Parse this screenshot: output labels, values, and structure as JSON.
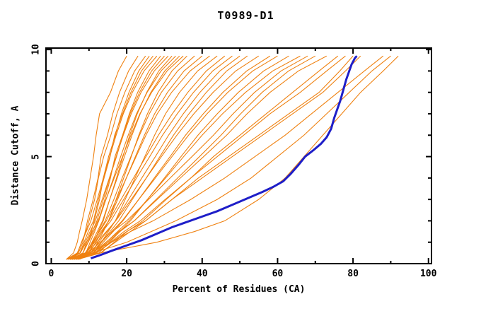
{
  "title": "T0989-D1",
  "chart_data": {
    "type": "line",
    "title": "T0989-D1",
    "xlabel": "Percent of Residues (CA)",
    "ylabel": "Distance Cutoff, A",
    "xlim": [
      -1.4,
      100.8
    ],
    "ylim": [
      0,
      10.07
    ],
    "grid": false,
    "legend": "none",
    "x_ticks_major": [
      0,
      20,
      40,
      60,
      80,
      100
    ],
    "x_ticks_minor": [
      10,
      30,
      50,
      70,
      90
    ],
    "x_tick_labels": [
      "0",
      "20",
      "40",
      "60",
      "80",
      "100"
    ],
    "y_ticks_major": [
      0,
      5,
      10
    ],
    "y_ticks_minor": [
      1,
      2,
      3,
      4,
      6,
      7,
      8,
      9
    ],
    "y_tick_labels": [
      "0",
      "5",
      "10"
    ],
    "colors": {
      "model_lines": "#EF8110",
      "highlight_line": "#1E1EC8",
      "axis": "#000000",
      "background": "#FFFFFF"
    },
    "series_note": "orange: per-model cumulative CA accuracy curves; blue: highlighted model curve",
    "y_levels": [
      0.2,
      0.5,
      1,
      1.5,
      2,
      3,
      4,
      5,
      6,
      7,
      8,
      9,
      9.7
    ],
    "orange_series_x": [
      [
        4,
        5.9,
        6.9,
        7.5,
        8.2,
        9.4,
        10.3,
        11.2,
        11.9,
        12.8,
        15.7,
        17.8,
        20
      ],
      [
        5,
        7.2,
        8.4,
        9,
        9.6,
        11.1,
        12.4,
        13.2,
        14.9,
        16.3,
        18.1,
        20.5,
        23
      ],
      [
        4.5,
        7,
        8,
        9.2,
        10,
        11.5,
        12.5,
        13.9,
        15.8,
        17.4,
        19.5,
        22.1,
        25
      ],
      [
        6,
        8.4,
        9.4,
        10.6,
        11.4,
        12.8,
        13.8,
        15.2,
        17,
        18.6,
        20.6,
        23.2,
        26
      ],
      [
        5,
        7.6,
        8.7,
        9.8,
        11.2,
        12.5,
        14,
        15.6,
        16.8,
        18.9,
        21.1,
        23.9,
        27
      ],
      [
        4,
        6.9,
        8.1,
        9.3,
        10.5,
        12.2,
        13.8,
        15.5,
        17.2,
        19.1,
        21.5,
        24.6,
        28
      ],
      [
        6.5,
        9.2,
        10.3,
        11.5,
        12.6,
        14.2,
        15.7,
        16.9,
        18.9,
        20.7,
        22.9,
        25.9,
        29
      ],
      [
        5.5,
        8.4,
        9.7,
        10.9,
        12.1,
        13.8,
        15.5,
        17.3,
        19,
        20.9,
        23.4,
        26.6,
        30
      ],
      [
        4.5,
        7.7,
        9,
        10.3,
        11.7,
        13.5,
        15.4,
        17.2,
        19.1,
        21.2,
        23.8,
        27.3,
        31
      ],
      [
        7,
        10,
        11.3,
        12.5,
        13.8,
        15.5,
        17.3,
        19,
        20.8,
        22.8,
        25.3,
        28.5,
        32
      ],
      [
        5,
        8.4,
        9.8,
        11.2,
        12.6,
        14.5,
        16.5,
        18.4,
        20.4,
        22.6,
        25.4,
        29.1,
        33
      ],
      [
        6,
        9.4,
        10.8,
        12.2,
        13.6,
        15.5,
        17.5,
        19.4,
        21.4,
        23.6,
        26.4,
        30.1,
        34
      ],
      [
        4,
        7.7,
        9.3,
        10.8,
        12.4,
        14.5,
        16.7,
        18.9,
        21.1,
        23.5,
        26.6,
        30.7,
        35
      ],
      [
        7.5,
        10.9,
        12.3,
        13.8,
        15.2,
        17.2,
        19.2,
        21.2,
        23.2,
        25.5,
        28.3,
        32,
        36
      ],
      [
        5.5,
        9.4,
        11,
        12.7,
        14.3,
        16.6,
        18.8,
        21.1,
        23.4,
        26,
        29.2,
        33.5,
        38
      ],
      [
        6,
        10.1,
        11.8,
        13.5,
        15.2,
        17.6,
        19.9,
        22.3,
        24.7,
        27.4,
        30.8,
        35.2,
        40
      ],
      [
        4.5,
        9,
        10.9,
        12.8,
        14.6,
        17.3,
        19.9,
        22.5,
        25.1,
        28.1,
        31.9,
        36.8,
        42
      ],
      [
        7,
        11.4,
        13.3,
        15.1,
        17,
        19.6,
        22.2,
        24.8,
        27.4,
        30.3,
        34,
        38.8,
        44
      ],
      [
        5,
        9.1,
        11.2,
        13.2,
        15.3,
        18.5,
        21.8,
        25.1,
        28.4,
        32.1,
        36.2,
        41.1,
        46
      ],
      [
        6,
        10.4,
        12.6,
        14.8,
        17,
        20.5,
        24,
        27.6,
        31.1,
        35,
        39.4,
        44.7,
        50
      ],
      [
        4,
        9.8,
        13,
        16.2,
        20,
        25.8,
        31.5,
        37.3,
        43,
        48.2,
        53.9,
        60.9,
        68
      ],
      [
        5,
        9.3,
        11.5,
        13.6,
        15.8,
        19.2,
        22.6,
        26.1,
        29.5,
        33.4,
        37.7,
        42.8,
        48
      ],
      [
        6.5,
        11.1,
        13.3,
        15.6,
        17.9,
        21.5,
        25.2,
        28.8,
        32.4,
        36.5,
        41.1,
        46.5,
        52
      ],
      [
        4.5,
        9.6,
        12.1,
        14.6,
        17.1,
        21.2,
        25.2,
        29.2,
        33.3,
        37.8,
        42.9,
        48.9,
        55
      ],
      [
        6,
        11.2,
        13.8,
        16.4,
        19,
        23.2,
        27.3,
        31.5,
        35.6,
        40.3,
        45.5,
        51.8,
        58
      ],
      [
        5,
        10.5,
        13.3,
        16,
        18.8,
        23.2,
        27.6,
        32,
        36.4,
        41.3,
        46.8,
        53.4,
        60
      ],
      [
        7,
        12.6,
        15.4,
        18.2,
        21,
        25.5,
        30,
        34.4,
        38.9,
        44,
        49.6,
        56.3,
        63
      ],
      [
        5.5,
        11.6,
        14.6,
        17.6,
        20.6,
        25.5,
        30.3,
        35.1,
        40,
        45.4,
        51.5,
        58.7,
        66
      ],
      [
        6,
        11.8,
        15,
        18.2,
        22,
        27.8,
        33.5,
        39.3,
        45,
        50.2,
        55.9,
        62.9,
        70
      ],
      [
        5,
        11.1,
        14.5,
        17.9,
        22,
        28.1,
        34.2,
        40.4,
        46.5,
        51.9,
        58,
        65.5,
        73
      ],
      [
        7,
        13.2,
        16.7,
        20.1,
        24.3,
        30.5,
        37,
        43,
        50,
        57,
        64,
        71,
        76
      ],
      [
        5.5,
        12,
        15.7,
        19.3,
        23.6,
        30.2,
        37,
        44,
        51,
        58,
        66,
        73,
        78
      ],
      [
        6.5,
        13,
        17,
        21,
        25,
        32,
        39,
        47,
        55,
        63,
        71,
        76.5,
        80
      ],
      [
        5,
        12,
        16,
        20,
        25,
        32,
        40,
        48,
        56,
        64,
        72,
        78,
        82
      ],
      [
        5.5,
        10,
        16,
        21,
        27,
        37,
        46,
        54,
        62,
        69,
        76,
        83,
        88
      ],
      [
        6,
        11,
        20,
        26.5,
        33,
        44,
        53,
        60,
        67,
        73,
        79,
        85,
        90
      ],
      [
        6.5,
        13,
        28,
        38,
        46,
        55,
        62,
        67,
        72,
        77,
        82,
        88,
        92
      ]
    ],
    "blue_series": [
      [
        10.5,
        0.25
      ],
      [
        13,
        0.4
      ],
      [
        16,
        0.6
      ],
      [
        20,
        0.85
      ],
      [
        24,
        1.1
      ],
      [
        28,
        1.4
      ],
      [
        32,
        1.7
      ],
      [
        36,
        1.95
      ],
      [
        40,
        2.2
      ],
      [
        44,
        2.45
      ],
      [
        48,
        2.75
      ],
      [
        52,
        3.05
      ],
      [
        56,
        3.35
      ],
      [
        59,
        3.6
      ],
      [
        61.5,
        3.85
      ],
      [
        63.5,
        4.2
      ],
      [
        65.5,
        4.6
      ],
      [
        67.3,
        5.0
      ],
      [
        69.5,
        5.3
      ],
      [
        71.5,
        5.6
      ],
      [
        73,
        5.9
      ],
      [
        74.2,
        6.3
      ],
      [
        75,
        6.8
      ],
      [
        75.8,
        7.2
      ],
      [
        76.6,
        7.6
      ],
      [
        77.4,
        8.1
      ],
      [
        78.2,
        8.6
      ],
      [
        78.8,
        8.9
      ],
      [
        79.6,
        9.3
      ],
      [
        80.5,
        9.6
      ],
      [
        81,
        9.7
      ]
    ]
  }
}
